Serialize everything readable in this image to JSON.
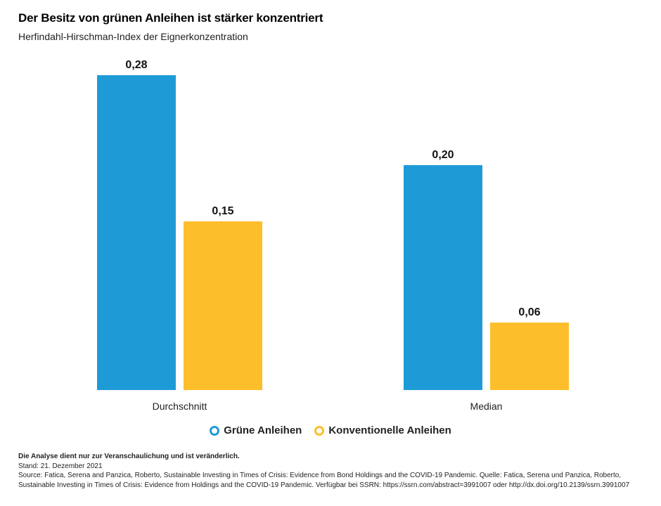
{
  "chart_data": {
    "type": "bar",
    "title": "Der Besitz von grünen Anleihen ist stärker konzentriert",
    "subtitle": "Herfindahl-Hirschman-Index der Eignerkonzentration",
    "categories": [
      "Durchschnitt",
      "Median"
    ],
    "series": [
      {
        "name": "Grüne Anleihen",
        "color": "#1e9bd7",
        "values": [
          0.28,
          0.2
        ],
        "labels": [
          "0,28",
          "0,20"
        ]
      },
      {
        "name": "Konventionelle Anleihen",
        "color": "#fdbe2b",
        "values": [
          0.15,
          0.06
        ],
        "labels": [
          "0,15",
          "0,06"
        ]
      }
    ],
    "ylim": [
      0,
      0.28
    ],
    "grid": false,
    "legend_position": "bottom"
  },
  "footer": {
    "note": "Die Analyse dient nur zur Veranschaulichung und ist veränderlich.",
    "date": "Stand: 21. Dezember 2021",
    "source": "Source: Fatica, Serena and Panzica, Roberto, Sustainable Investing in Times of Crisis: Evidence from Bond Holdings and the COVID-19 Pandemic. Quelle: Fatica, Serena und Panzica, Roberto, Sustainable Investing in Times of Crisis: Evidence from Holdings and the COVID-19 Pandemic. Verfügbar bei SSRN: https://ssrn.com/abstract=3991007 oder http://dx.doi.org/10.2139/ssrn.3991007"
  }
}
